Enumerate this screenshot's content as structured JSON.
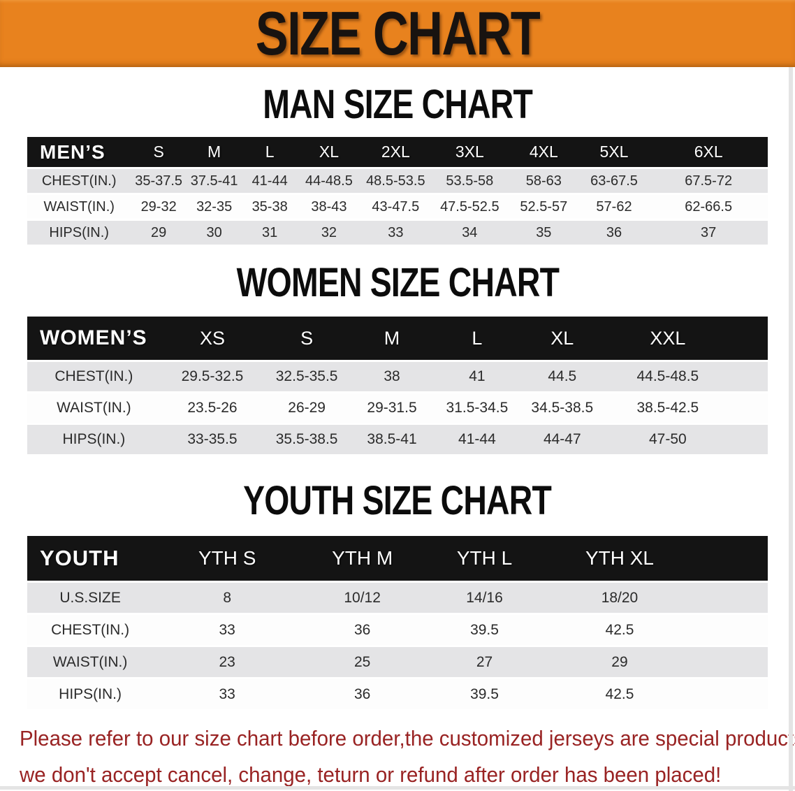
{
  "banner": {
    "title": "SIZE CHART"
  },
  "sections": [
    {
      "id": "men",
      "heading": "MAN SIZE CHART",
      "table": {
        "header": [
          "MEN’S",
          "S",
          "M",
          "L",
          "XL",
          "2XL",
          "3XL",
          "4XL",
          "5XL",
          "6XL"
        ],
        "rows": [
          {
            "label": "CHEST(IN.)",
            "values": [
              "35-37.5",
              "37.5-41",
              "41-44",
              "44-48.5",
              "48.5-53.5",
              "53.5-58",
              "58-63",
              "63-67.5",
              "67.5-72"
            ]
          },
          {
            "label": "WAIST(IN.)",
            "values": [
              "29-32",
              "32-35",
              "35-38",
              "38-43",
              "43-47.5",
              "47.5-52.5",
              "52.5-57",
              "57-62",
              "62-66.5"
            ]
          },
          {
            "label": "HIPS(IN.)",
            "values": [
              "29",
              "30",
              "31",
              "32",
              "33",
              "34",
              "35",
              "36",
              "37"
            ]
          }
        ]
      }
    },
    {
      "id": "women",
      "heading": "WOMEN SIZE CHART",
      "table": {
        "header": [
          "WOMEN’S",
          "XS",
          "S",
          "M",
          "L",
          "XL",
          "XXL"
        ],
        "rows": [
          {
            "label": "CHEST(IN.)",
            "values": [
              "29.5-32.5",
              "32.5-35.5",
              "38",
              "41",
              "44.5",
              "44.5-48.5"
            ]
          },
          {
            "label": "WAIST(IN.)",
            "values": [
              "23.5-26",
              "26-29",
              "29-31.5",
              "31.5-34.5",
              "34.5-38.5",
              "38.5-42.5"
            ]
          },
          {
            "label": "HIPS(IN.)",
            "values": [
              "33-35.5",
              "35.5-38.5",
              "38.5-41",
              "41-44",
              "44-47",
              "47-50"
            ]
          }
        ]
      }
    },
    {
      "id": "youth",
      "heading": "YOUTH SIZE CHART",
      "table": {
        "header": [
          "YOUTH",
          "YTH S",
          "YTH M",
          "YTH L",
          "YTH XL"
        ],
        "rows": [
          {
            "label": "U.S.SIZE",
            "values": [
              "8",
              "10/12",
              "14/16",
              "18/20"
            ]
          },
          {
            "label": "CHEST(IN.)",
            "values": [
              "33",
              "36",
              "39.5",
              "42.5"
            ]
          },
          {
            "label": "WAIST(IN.)",
            "values": [
              "23",
              "25",
              "27",
              "29"
            ]
          },
          {
            "label": "HIPS(IN.)",
            "values": [
              "33",
              "36",
              "39.5",
              "42.5"
            ]
          }
        ]
      }
    }
  ],
  "footer": {
    "lines": [
      "Please refer to our size chart before order,the customized jerseys are special products,",
      "we don't accept cancel, change, teturn or refund after order has been placed!"
    ]
  },
  "colors": {
    "banner_bg": "#e8821e",
    "header_bar": "#141414",
    "row_gray": "#e4e4e6",
    "footer_red": "#992323"
  }
}
